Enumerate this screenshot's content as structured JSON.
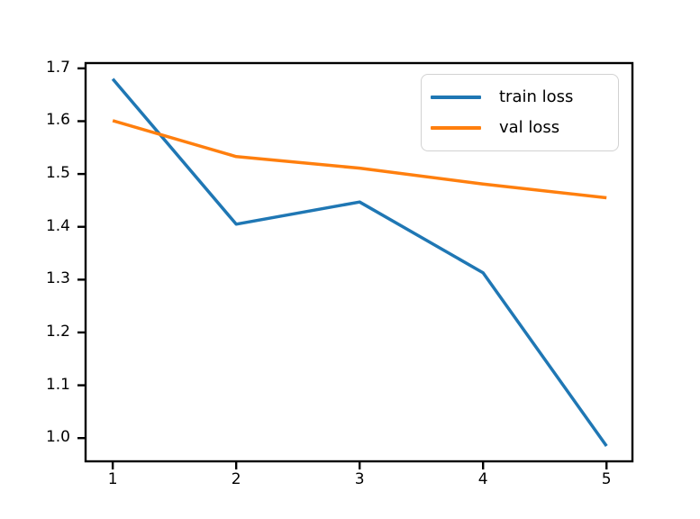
{
  "figure": {
    "background_color": "#ffffff",
    "axis_color": "#000000",
    "tick_label_color": "#000000"
  },
  "chart_data": {
    "type": "line",
    "title": "",
    "xlabel": "",
    "ylabel": "",
    "x": [
      1,
      2,
      3,
      4,
      5
    ],
    "series": [
      {
        "name": "train loss",
        "color": "#1f77b4",
        "values": [
          1.68,
          1.405,
          1.447,
          1.313,
          0.985
        ]
      },
      {
        "name": "val loss",
        "color": "#ff7f0e",
        "values": [
          1.601,
          1.533,
          1.511,
          1.481,
          1.455
        ]
      }
    ],
    "xlim": [
      0.78,
      5.21
    ],
    "ylim": [
      0.956,
      1.71
    ],
    "x_ticks": [
      "1",
      "2",
      "3",
      "4",
      "5"
    ],
    "y_ticks": [
      "1.0",
      "1.1",
      "1.2",
      "1.3",
      "1.4",
      "1.5",
      "1.6",
      "1.7"
    ],
    "grid": false,
    "legend_position": "upper right"
  },
  "legend": {
    "border_color": "#d2d2d2"
  }
}
